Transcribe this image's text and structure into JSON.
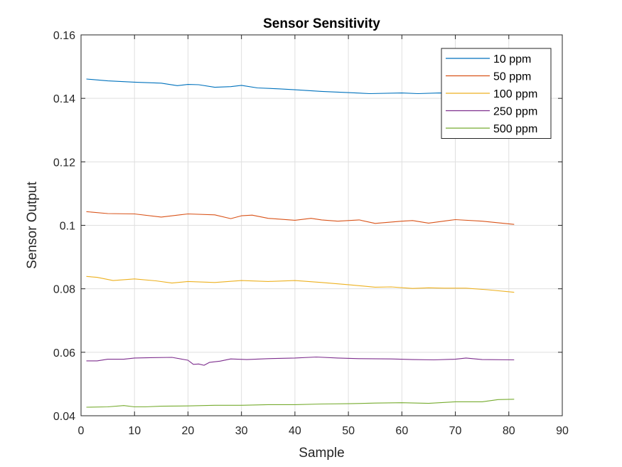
{
  "chart_data": {
    "type": "line",
    "title": "Sensor Sensitivity",
    "xlabel": "Sample",
    "ylabel": "Sensor Output",
    "xlim": [
      0,
      90
    ],
    "ylim": [
      0.04,
      0.16
    ],
    "xticks": [
      0,
      10,
      20,
      30,
      40,
      50,
      60,
      70,
      80,
      90
    ],
    "yticks": [
      0.04,
      0.06,
      0.08,
      0.1,
      0.12,
      0.14,
      0.16
    ],
    "ytick_labels": [
      "0.04",
      "0.06",
      "0.08",
      "0.1",
      "0.12",
      "0.14",
      "0.16"
    ],
    "grid": true,
    "legend_position": "top-right",
    "series": [
      {
        "name": "10 ppm",
        "color": "#0072BD",
        "x": [
          1,
          5,
          10,
          15,
          18,
          20,
          22,
          25,
          28,
          30,
          33,
          37,
          40,
          45,
          50,
          54,
          60,
          63,
          67,
          70
        ],
        "y": [
          0.1461,
          0.1455,
          0.1451,
          0.1448,
          0.144,
          0.1444,
          0.1443,
          0.1435,
          0.1437,
          0.1441,
          0.1433,
          0.143,
          0.1427,
          0.1422,
          0.1418,
          0.1415,
          0.1417,
          0.1415,
          0.1417,
          0.1416
        ]
      },
      {
        "name": "50 ppm",
        "color": "#D95319",
        "x": [
          1,
          5,
          10,
          15,
          20,
          25,
          28,
          30,
          32,
          35,
          40,
          43,
          45,
          48,
          50,
          52,
          55,
          60,
          62,
          65,
          70,
          75,
          81
        ],
        "y": [
          0.1043,
          0.1037,
          0.1036,
          0.1026,
          0.1036,
          0.1033,
          0.1021,
          0.103,
          0.1032,
          0.1022,
          0.1016,
          0.1022,
          0.1017,
          0.1013,
          0.1015,
          0.1017,
          0.1006,
          0.1013,
          0.1015,
          0.1007,
          0.1018,
          0.1013,
          0.1003
        ]
      },
      {
        "name": "100 ppm",
        "color": "#EDB120",
        "x": [
          1,
          3,
          6,
          10,
          14,
          17,
          20,
          25,
          30,
          35,
          40,
          45,
          50,
          55,
          58,
          62,
          65,
          68,
          72,
          76,
          81
        ],
        "y": [
          0.0839,
          0.0836,
          0.0826,
          0.0831,
          0.0825,
          0.0818,
          0.0823,
          0.082,
          0.0826,
          0.0823,
          0.0826,
          0.082,
          0.0813,
          0.0805,
          0.0806,
          0.0801,
          0.0803,
          0.0802,
          0.0802,
          0.0797,
          0.0789
        ]
      },
      {
        "name": "250 ppm",
        "color": "#7E2F8E",
        "x": [
          1,
          3,
          5,
          8,
          10,
          13,
          17,
          20,
          21,
          22,
          23,
          24,
          26,
          28,
          31,
          35,
          40,
          44,
          48,
          52,
          58,
          62,
          66,
          70,
          72,
          75,
          81
        ],
        "y": [
          0.0573,
          0.0573,
          0.0578,
          0.0578,
          0.0582,
          0.0583,
          0.0584,
          0.0575,
          0.0562,
          0.0563,
          0.0559,
          0.0568,
          0.0572,
          0.0579,
          0.0577,
          0.058,
          0.0582,
          0.0585,
          0.0582,
          0.058,
          0.0579,
          0.0577,
          0.0576,
          0.0578,
          0.0582,
          0.0577,
          0.0576
        ]
      },
      {
        "name": "500 ppm",
        "color": "#77AC30",
        "x": [
          1,
          5,
          8,
          10,
          12,
          15,
          20,
          25,
          30,
          35,
          40,
          45,
          50,
          55,
          60,
          65,
          70,
          75,
          78,
          81
        ],
        "y": [
          0.0427,
          0.0428,
          0.0432,
          0.0428,
          0.0428,
          0.043,
          0.0431,
          0.0433,
          0.0433,
          0.0435,
          0.0435,
          0.0437,
          0.0438,
          0.044,
          0.0441,
          0.0439,
          0.0444,
          0.0444,
          0.0451,
          0.0452
        ]
      }
    ]
  }
}
